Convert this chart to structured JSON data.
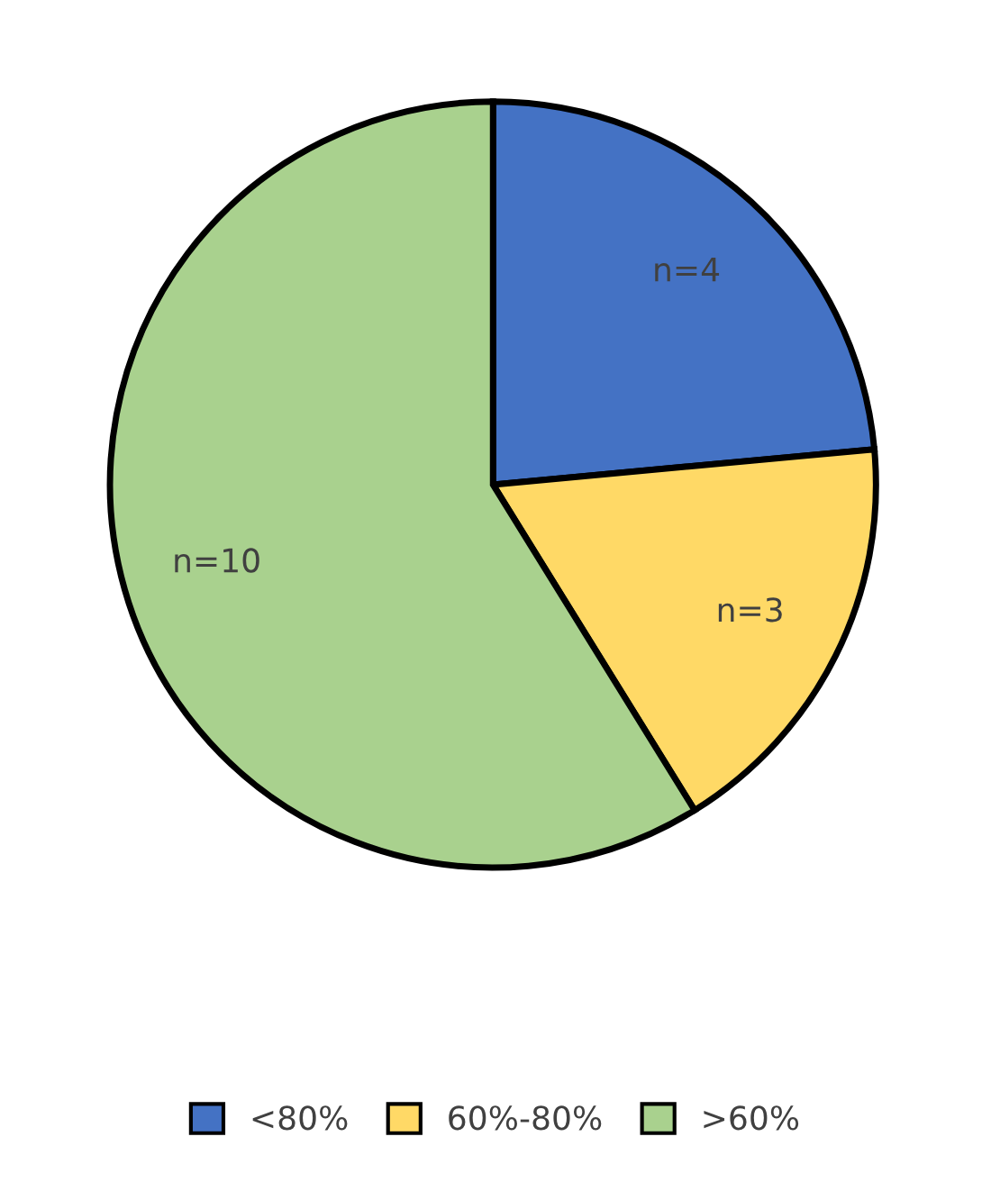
{
  "chart_data": {
    "type": "pie",
    "categories": [
      "<80%",
      "60%-80%",
      ">60%"
    ],
    "values": [
      4,
      3,
      10
    ],
    "colors": [
      "#4472c4",
      "#ffd966",
      "#a9d18e"
    ],
    "value_labels": [
      "n=4",
      "n=3",
      "n=10"
    ],
    "legend": "bottom"
  }
}
